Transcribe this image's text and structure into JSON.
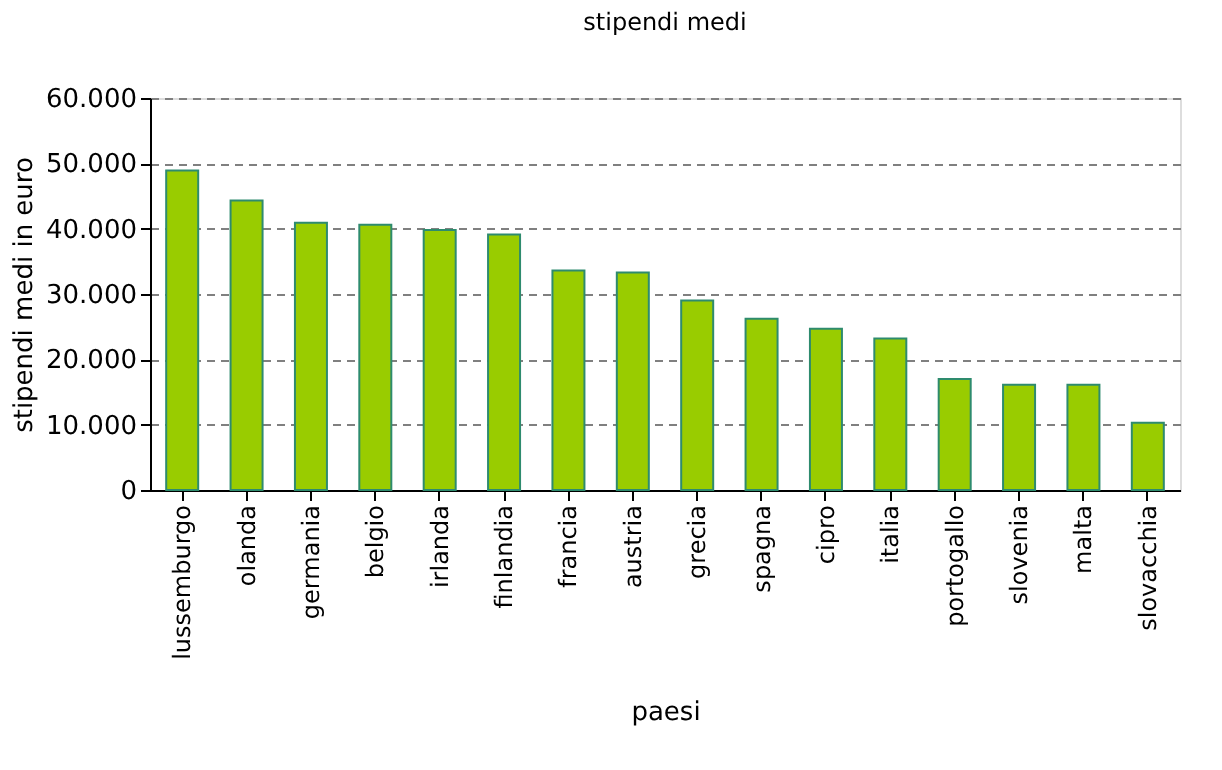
{
  "chart_data": {
    "type": "bar",
    "title": "stipendi medi",
    "xlabel": "paesi",
    "ylabel": "stipendi medi in euro",
    "categories": [
      "lussemburgo",
      "olanda",
      "germania",
      "belgio",
      "irlanda",
      "finlandia",
      "francia",
      "austria",
      "grecia",
      "spagna",
      "cipro",
      "italia",
      "portogallo",
      "slovenia",
      "malta",
      "slovacchia"
    ],
    "values": [
      48900,
      44300,
      40900,
      40600,
      39800,
      39100,
      33600,
      33300,
      29000,
      26200,
      24700,
      23200,
      17000,
      16100,
      16100,
      10300
    ],
    "color": "#99cc00",
    "ylim": [
      0,
      60000
    ],
    "yticks": [
      0,
      {
        "value": 10000,
        "label": "10.000"
      },
      {
        "value": 20000,
        "label": "20.000"
      },
      {
        "value": 30000,
        "label": "30.000"
      },
      {
        "value": 40000,
        "label": "40.000"
      },
      {
        "value": 50000,
        "label": "50.000"
      },
      {
        "value": 60000,
        "label": "60.000"
      }
    ],
    "grid": "y"
  }
}
